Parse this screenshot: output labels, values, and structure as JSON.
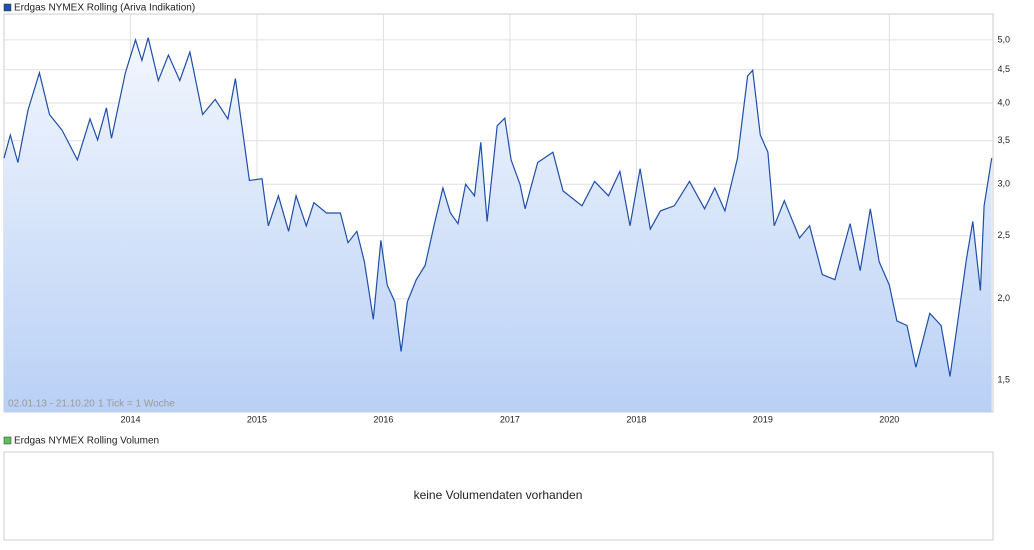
{
  "chart_data": [
    {
      "type": "line",
      "title": "Erdgas NYMEX Rolling (Ariva Indikation)",
      "date_range": "02.01.13 - 21.10.20",
      "tick_note": "1 Tick = 1 Woche",
      "log_scale": true,
      "grid": true,
      "xlim": [
        2013.0,
        2020.82
      ],
      "xticks": [
        2014,
        2015,
        2016,
        2017,
        2018,
        2019,
        2020
      ],
      "ylim": [
        1.34,
        5.48
      ],
      "yticks": [
        {
          "value": 1.5,
          "label": "1,5"
        },
        {
          "value": 2.0,
          "label": "2,0"
        },
        {
          "value": 2.5,
          "label": "2,5"
        },
        {
          "value": 3.0,
          "label": "3,0"
        },
        {
          "value": 3.5,
          "label": "3,5"
        },
        {
          "value": 4.0,
          "label": "4,0"
        },
        {
          "value": 4.5,
          "label": "4,5"
        },
        {
          "value": 5.0,
          "label": "5,0"
        }
      ],
      "series": [
        {
          "name": "Erdgas NYMEX Rolling (Ariva Indikation)",
          "color": "#1f4fa8",
          "x": [
            2013.0,
            2013.05,
            2013.11,
            2013.19,
            2013.28,
            2013.36,
            2013.46,
            2013.58,
            2013.68,
            2013.74,
            2013.81,
            2013.85,
            2013.96,
            2014.04,
            2014.09,
            2014.14,
            2014.22,
            2014.3,
            2014.39,
            2014.47,
            2014.57,
            2014.67,
            2014.77,
            2014.83,
            2014.94,
            2015.04,
            2015.09,
            2015.17,
            2015.25,
            2015.31,
            2015.39,
            2015.45,
            2015.55,
            2015.66,
            2015.72,
            2015.79,
            2015.85,
            2015.92,
            2015.98,
            2016.03,
            2016.09,
            2016.14,
            2016.19,
            2016.26,
            2016.33,
            2016.4,
            2016.47,
            2016.53,
            2016.59,
            2016.65,
            2016.72,
            2016.77,
            2016.82,
            2016.9,
            2016.96,
            2017.01,
            2017.08,
            2017.12,
            2017.22,
            2017.34,
            2017.42,
            2017.57,
            2017.67,
            2017.78,
            2017.87,
            2017.95,
            2018.03,
            2018.11,
            2018.19,
            2018.3,
            2018.42,
            2018.54,
            2018.62,
            2018.7,
            2018.8,
            2018.88,
            2018.92,
            2018.98,
            2019.04,
            2019.09,
            2019.17,
            2019.29,
            2019.37,
            2019.47,
            2019.57,
            2019.69,
            2019.77,
            2019.85,
            2019.92,
            2020.0,
            2020.06,
            2020.14,
            2020.21,
            2020.32,
            2020.41,
            2020.48,
            2020.54,
            2020.61,
            2020.66,
            2020.72,
            2020.75,
            2020.81
          ],
          "values": [
            3.29,
            3.57,
            3.24,
            3.9,
            4.45,
            3.84,
            3.63,
            3.27,
            3.78,
            3.51,
            3.93,
            3.53,
            4.45,
            5.0,
            4.65,
            5.04,
            4.33,
            4.74,
            4.33,
            4.79,
            3.84,
            4.05,
            3.78,
            4.36,
            3.04,
            3.06,
            2.59,
            2.88,
            2.54,
            2.88,
            2.59,
            2.81,
            2.71,
            2.71,
            2.44,
            2.54,
            2.28,
            1.86,
            2.46,
            2.1,
            1.98,
            1.66,
            1.98,
            2.14,
            2.25,
            2.59,
            2.96,
            2.71,
            2.61,
            3.0,
            2.88,
            3.48,
            2.63,
            3.69,
            3.79,
            3.27,
            3.0,
            2.75,
            3.24,
            3.36,
            2.93,
            2.78,
            3.03,
            2.88,
            3.14,
            2.59,
            3.17,
            2.56,
            2.73,
            2.78,
            3.03,
            2.75,
            2.96,
            2.73,
            3.29,
            4.4,
            4.49,
            3.57,
            3.36,
            2.59,
            2.83,
            2.48,
            2.59,
            2.18,
            2.14,
            2.61,
            2.21,
            2.75,
            2.28,
            2.1,
            1.85,
            1.82,
            1.57,
            1.9,
            1.82,
            1.52,
            1.84,
            2.3,
            2.63,
            2.06,
            2.78,
            3.29
          ]
        }
      ]
    },
    {
      "type": "empty",
      "title": "Erdgas NYMEX Rolling Volumen",
      "message": "keine Volumendaten vorhanden"
    }
  ]
}
